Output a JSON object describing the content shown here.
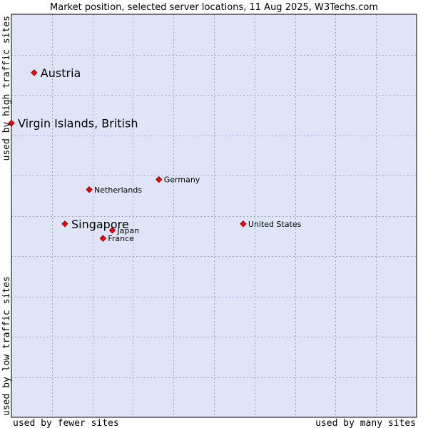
{
  "chart_data": {
    "type": "scatter",
    "title": "Market position, selected server locations, 11 Aug 2025, W3Techs.com",
    "xlabel_left": "used by fewer sites",
    "xlabel_right": "used by many sites",
    "ylabel_top": "used by high traffic sites",
    "ylabel_bottom": "used by low traffic sites",
    "xlim": [
      0,
      100
    ],
    "ylim": [
      0,
      100
    ],
    "grid": true,
    "colors": {
      "plot_background": "#e0e4f8",
      "point_fill": "#ff0000",
      "border": "#000000"
    },
    "points": [
      {
        "name": "Austria",
        "x": 5.6,
        "y": 85.5,
        "emphasis": true
      },
      {
        "name": "Virgin Islands, British",
        "x": 0.0,
        "y": 73.0,
        "emphasis": true
      },
      {
        "name": "Germany",
        "x": 36.4,
        "y": 59.0,
        "emphasis": false
      },
      {
        "name": "Netherlands",
        "x": 19.2,
        "y": 56.5,
        "emphasis": false
      },
      {
        "name": "Singapore",
        "x": 13.2,
        "y": 48.0,
        "emphasis": true
      },
      {
        "name": "United States",
        "x": 57.2,
        "y": 48.0,
        "emphasis": false
      },
      {
        "name": "Japan",
        "x": 24.9,
        "y": 46.4,
        "emphasis": false
      },
      {
        "name": "France",
        "x": 22.6,
        "y": 44.4,
        "emphasis": false
      }
    ]
  }
}
